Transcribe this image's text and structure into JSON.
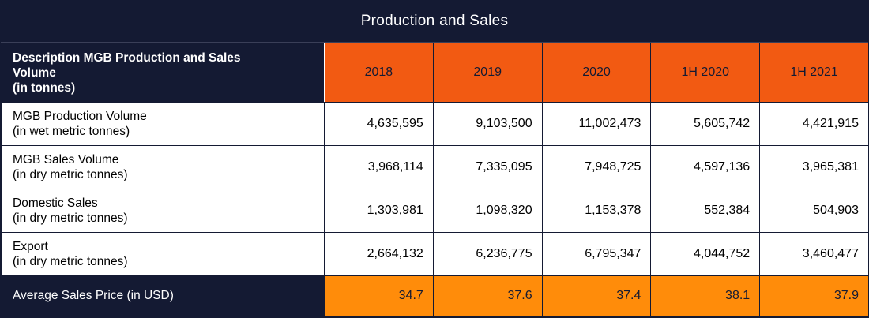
{
  "title": "Production and Sales",
  "colors": {
    "navy": "#141a33",
    "header_orange": "#f25a12",
    "footer_orange": "#ff8c0a",
    "white": "#ffffff"
  },
  "header": {
    "description_lines": [
      "Description MGB Production and Sales",
      "Volume",
      "(in tonnes)"
    ],
    "years": [
      "2018",
      "2019",
      "2020",
      "1H 2020",
      "1H 2021"
    ]
  },
  "rows": [
    {
      "label_lines": [
        "MGB Production Volume",
        "(in wet metric tonnes)"
      ],
      "values": [
        "4,635,595",
        "9,103,500",
        "11,002,473",
        "5,605,742",
        "4,421,915"
      ]
    },
    {
      "label_lines": [
        "MGB Sales Volume",
        "(in dry metric tonnes)"
      ],
      "values": [
        "3,968,114",
        "7,335,095",
        "7,948,725",
        "4,597,136",
        "3,965,381"
      ]
    },
    {
      "label_lines": [
        "Domestic Sales",
        "(in dry metric tonnes)"
      ],
      "values": [
        "1,303,981",
        "1,098,320",
        "1,153,378",
        "552,384",
        "504,903"
      ]
    },
    {
      "label_lines": [
        "Export",
        "(in dry metric tonnes)"
      ],
      "values": [
        "2,664,132",
        "6,236,775",
        "6,795,347",
        "4,044,752",
        "3,460,477"
      ]
    }
  ],
  "footer": {
    "label": "Average Sales Price (in USD)",
    "values": [
      "34.7",
      "37.6",
      "37.4",
      "38.1",
      "37.9"
    ]
  }
}
